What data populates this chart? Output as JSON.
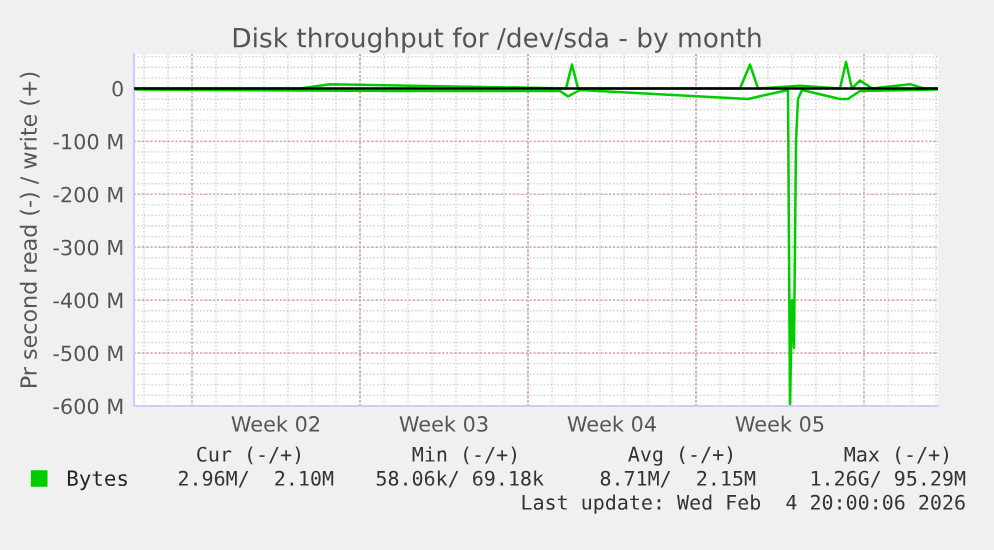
{
  "chart_data": {
    "type": "line",
    "title": "Disk throughput for /dev/sda - by month",
    "ylabel": "Pr second read (-) / write (+)",
    "series": [
      {
        "name": "Bytes",
        "color": "#00cc00",
        "x": [
          "2026-01-02T14:00",
          "2026-01-09T12:00",
          "2026-01-10T18:00",
          "2026-01-20T14:00",
          "2026-01-20T20:00",
          "2026-01-21T02:00",
          "2026-01-27T20:00",
          "2026-01-28T06:00",
          "2026-01-28T14:00",
          "2026-01-30T08:00",
          "2026-02-01T00:00",
          "2026-02-01T06:00",
          "2026-02-01T12:00",
          "2026-02-01T20:00",
          "2026-02-02T08:00",
          "2026-02-03T22:00",
          "2026-02-04T12:00",
          "2026-02-05T02:00"
        ],
        "values": [
          0,
          0,
          8,
          0,
          45,
          0,
          0,
          45,
          0,
          5,
          0,
          50,
          0,
          15,
          0,
          8,
          0,
          0
        ]
      },
      {
        "color": "#00cc00",
        "x": [
          "2026-01-02T14:00",
          "2026-01-13T16:00",
          "2026-01-20T08:00",
          "2026-01-20T16:00",
          "2026-01-21T04:00",
          "2026-01-28T04:00",
          "2026-01-29T20:00",
          "2026-01-29T22:00",
          "2026-01-30T00:00",
          "2026-01-30T02:00",
          "2026-01-30T04:00",
          "2026-01-30T06:00",
          "2026-01-30T10:00",
          "2026-02-01T00:00",
          "2026-02-01T08:00",
          "2026-02-01T20:00",
          "2026-02-05T02:00"
        ],
        "values": [
          -2,
          -5,
          -5,
          -15,
          -3,
          -20,
          -3,
          -600,
          -400,
          -490,
          -100,
          -20,
          -3,
          -20,
          -20,
          -5,
          -2
        ]
      }
    ],
    "xlim": [
      "2026-01-02T14:00",
      "2026-02-05T02:00"
    ],
    "xticks": [
      {
        "value": "2026-01-08T12:00",
        "label": "Week 02"
      },
      {
        "value": "2026-01-15T12:00",
        "label": "Week 03"
      },
      {
        "value": "2026-01-22T12:00",
        "label": "Week 04"
      },
      {
        "value": "2026-01-29T12:00",
        "label": "Week 05"
      }
    ],
    "ylim": [
      -600,
      65
    ],
    "yticks": [
      {
        "value": -600,
        "label": "-600 M"
      },
      {
        "value": -500,
        "label": "-500 M"
      },
      {
        "value": -400,
        "label": "-400 M"
      },
      {
        "value": -300,
        "label": "-300 M"
      },
      {
        "value": -200,
        "label": "-200 M"
      },
      {
        "value": -100,
        "label": "-100 M"
      },
      0
    ],
    "ref_lines": [
      {
        "axis": "y",
        "value": 0,
        "color": "#000000"
      }
    ],
    "grid": true,
    "legend": "bottom",
    "annotations": [
      "Cur (-/+)",
      "Min (-/+)",
      "Avg (-/+)",
      "Max (-/+)",
      "2.96M/  2.10M",
      "58.06k/ 69.18k",
      "8.71M/  2.15M",
      "1.26G/ 95.29M",
      "Last update: Wed Feb  4 20:00:06 2026"
    ]
  }
}
